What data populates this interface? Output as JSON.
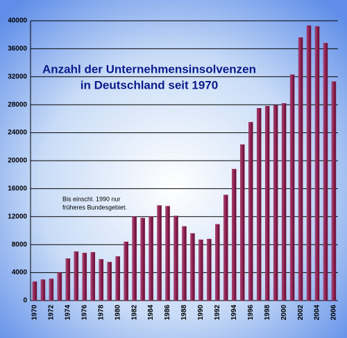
{
  "chart_data": {
    "type": "bar",
    "title": [
      "Anzahl der Unternehmensinsolvenzen",
      "in Deutschland seit 1970"
    ],
    "annotation": [
      "Bis einschl. 1990 nur",
      "früheres Bundesgebiet."
    ],
    "categories": [
      "1970",
      null,
      "1972",
      null,
      "1974",
      null,
      "1976",
      null,
      "1978",
      null,
      "1980",
      null,
      "1982",
      null,
      "1984",
      null,
      "1986",
      null,
      "1988",
      null,
      "1990",
      null,
      "1992",
      null,
      "1994",
      null,
      "1996",
      null,
      "1998",
      null,
      "2000",
      null,
      "2002",
      null,
      "2004",
      null,
      "2006"
    ],
    "values": [
      2700,
      3000,
      3100,
      4000,
      6000,
      7000,
      6800,
      6900,
      5900,
      5500,
      6300,
      8400,
      12000,
      11800,
      12000,
      13600,
      13500,
      12100,
      10600,
      9600,
      8700,
      8800,
      10900,
      15100,
      18800,
      22300,
      25500,
      27500,
      27800,
      27900,
      28200,
      32300,
      37600,
      39300,
      39200,
      36800,
      31300
    ],
    "color": "#8c2050",
    "ylim": [
      0,
      40000
    ],
    "yticks": [
      0,
      4000,
      8000,
      12000,
      16000,
      20000,
      24000,
      28000,
      32000,
      36000,
      40000
    ],
    "grid": true
  }
}
